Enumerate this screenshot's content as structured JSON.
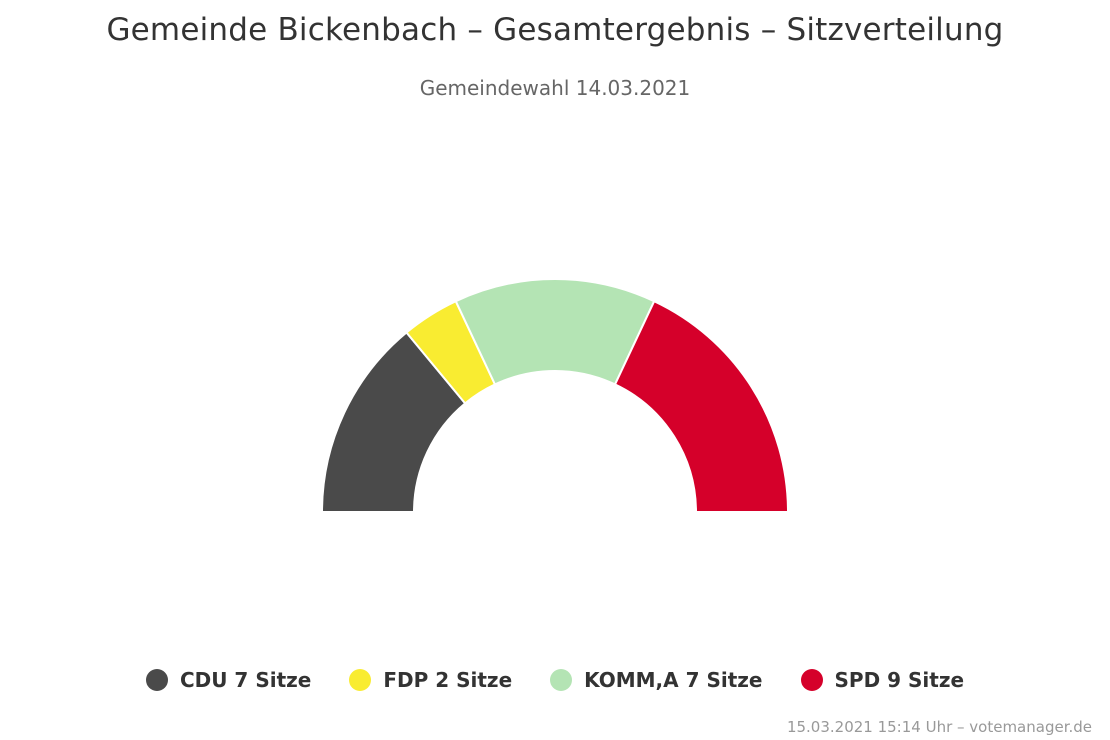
{
  "title": "Gemeinde Bickenbach – Gesamtergebnis – Sitzverteilung",
  "subtitle": "Gemeindewahl 14.03.2021",
  "credits": "15.03.2021 15:14 Uhr – votemanager.de",
  "legend": [
    {
      "label": "CDU 7 Sitze",
      "color": "#4a4a4a"
    },
    {
      "label": "FDP 2 Sitze",
      "color": "#f9ec31"
    },
    {
      "label": "KOMM,A 7 Sitze",
      "color": "#b4e4b4"
    },
    {
      "label": "SPD 9 Sitze",
      "color": "#d5002a"
    }
  ],
  "chart_data": {
    "type": "pie",
    "style": "semicircle donut",
    "title": "Gemeinde Bickenbach – Gesamtergebnis – Sitzverteilung",
    "subtitle": "Gemeindewahl 14.03.2021",
    "legend_position": "bottom",
    "categories": [
      "CDU",
      "FDP",
      "KOMM,A",
      "SPD"
    ],
    "values": [
      7,
      2,
      7,
      9
    ],
    "unit": "Sitze",
    "colors": [
      "#4a4a4a",
      "#f9ec31",
      "#b4e4b4",
      "#d5002a"
    ]
  }
}
